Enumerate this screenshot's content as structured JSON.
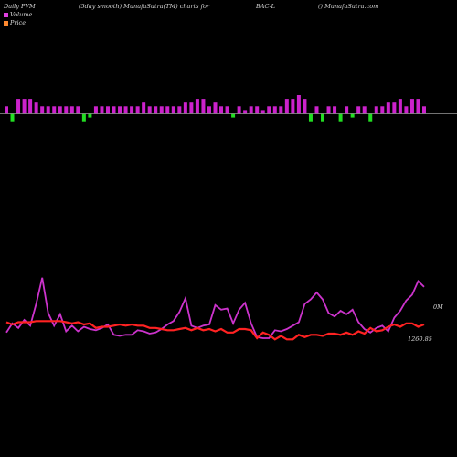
{
  "header": {
    "left": "Daily PVM",
    "center_left": "(5day smooth) MunafaSutra(TM) charts for",
    "symbol": "BAC-L",
    "right": "() MunafaSutra.com"
  },
  "legend": [
    {
      "label": "Volume",
      "color": "#e040e0"
    },
    {
      "label": "Price",
      "color": "#ff8a30"
    }
  ],
  "colors": {
    "volume_up": "#cc22cc",
    "volume_down": "#22dd22",
    "volume_line": "#cc33cc",
    "price_line": "#ff2222",
    "baseline": "#9a9a9a",
    "background": "#000000"
  },
  "chart_data": {
    "type": "bar",
    "bars": {
      "heights": [
        2,
        2,
        4,
        4,
        4,
        3,
        2,
        2,
        2,
        2,
        2,
        2,
        2,
        2,
        1,
        2,
        2,
        2,
        2,
        2,
        2,
        2,
        2,
        3,
        2,
        2,
        2,
        2,
        2,
        2,
        3,
        3,
        4,
        4,
        2,
        3,
        2,
        2,
        1,
        2,
        1,
        2,
        2,
        1,
        2,
        2,
        2,
        4,
        4,
        5,
        4,
        2,
        2,
        2,
        2,
        2,
        2,
        2,
        1,
        2,
        2,
        2,
        2,
        2,
        3,
        3,
        4,
        2,
        4,
        4,
        2
      ],
      "directions": [
        "up",
        "down",
        "up",
        "up",
        "up",
        "up",
        "up",
        "up",
        "up",
        "up",
        "up",
        "up",
        "up",
        "down",
        "down",
        "up",
        "up",
        "up",
        "up",
        "up",
        "up",
        "up",
        "up",
        "up",
        "up",
        "up",
        "up",
        "up",
        "up",
        "up",
        "up",
        "up",
        "up",
        "up",
        "up",
        "up",
        "up",
        "up",
        "down",
        "up",
        "up",
        "up",
        "up",
        "up",
        "up",
        "up",
        "up",
        "up",
        "up",
        "up",
        "up",
        "down",
        "up",
        "down",
        "up",
        "up",
        "down",
        "up",
        "down",
        "up",
        "up",
        "down",
        "up",
        "up",
        "up",
        "up",
        "up",
        "up",
        "up",
        "up",
        "up"
      ],
      "ylim": [
        0,
        5
      ]
    },
    "volume_series": [
      0.33,
      0.41,
      0.37,
      0.44,
      0.39,
      0.58,
      0.81,
      0.5,
      0.39,
      0.49,
      0.34,
      0.39,
      0.34,
      0.38,
      0.36,
      0.35,
      0.37,
      0.4,
      0.31,
      0.3,
      0.31,
      0.31,
      0.35,
      0.34,
      0.32,
      0.33,
      0.36,
      0.4,
      0.43,
      0.51,
      0.63,
      0.39,
      0.37,
      0.39,
      0.4,
      0.57,
      0.53,
      0.54,
      0.41,
      0.53,
      0.59,
      0.41,
      0.29,
      0.28,
      0.28,
      0.35,
      0.34,
      0.36,
      0.39,
      0.42,
      0.58,
      0.62,
      0.68,
      0.62,
      0.5,
      0.47,
      0.52,
      0.49,
      0.53,
      0.42,
      0.36,
      0.33,
      0.37,
      0.39,
      0.34,
      0.46,
      0.52,
      0.61,
      0.66,
      0.78,
      0.73
    ],
    "price_series": [
      0.42,
      0.4,
      0.42,
      0.42,
      0.42,
      0.43,
      0.43,
      0.43,
      0.43,
      0.43,
      0.42,
      0.41,
      0.42,
      0.4,
      0.41,
      0.37,
      0.38,
      0.38,
      0.39,
      0.4,
      0.39,
      0.4,
      0.39,
      0.39,
      0.37,
      0.37,
      0.36,
      0.35,
      0.35,
      0.36,
      0.37,
      0.35,
      0.37,
      0.35,
      0.36,
      0.34,
      0.36,
      0.33,
      0.33,
      0.36,
      0.36,
      0.35,
      0.28,
      0.33,
      0.31,
      0.27,
      0.3,
      0.27,
      0.27,
      0.31,
      0.29,
      0.31,
      0.31,
      0.3,
      0.32,
      0.32,
      0.31,
      0.33,
      0.31,
      0.34,
      0.32,
      0.37,
      0.34,
      0.35,
      0.38,
      0.4,
      0.38,
      0.41,
      0.41,
      0.38,
      0.4
    ],
    "series_ylim": [
      0,
      1
    ],
    "label_volume": "0M",
    "label_price": "1260.85"
  }
}
